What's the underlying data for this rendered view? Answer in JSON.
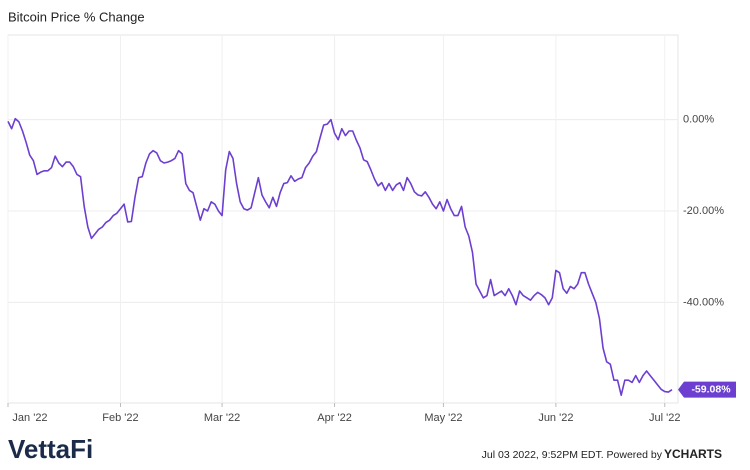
{
  "chart_data": {
    "type": "line",
    "title": "Bitcoin Price % Change",
    "series": [
      {
        "name": "Bitcoin Price % Change",
        "color": "#6c3fd1",
        "values": [
          -0.4,
          -2,
          0.2,
          -0.5,
          -2.5,
          -5,
          -7.8,
          -9,
          -12,
          -11.5,
          -11.2,
          -11.2,
          -10.5,
          -8,
          -9.5,
          -10.3,
          -9.3,
          -9.3,
          -10.3,
          -12,
          -12.5,
          -19,
          -23.5,
          -26,
          -25,
          -24,
          -23.5,
          -22.5,
          -22,
          -21,
          -20.5,
          -19.5,
          -18.5,
          -22.4,
          -22.3,
          -17,
          -12.7,
          -12.5,
          -9.5,
          -7.5,
          -6.8,
          -7.3,
          -9,
          -9.5,
          -9.3,
          -9,
          -8.5,
          -6.8,
          -7.5,
          -14,
          -15.5,
          -16,
          -19,
          -22,
          -19.5,
          -20,
          -18,
          -18.5,
          -20,
          -21,
          -11,
          -7,
          -8.5,
          -14,
          -18,
          -19.5,
          -19.8,
          -19.3,
          -16,
          -12.7,
          -16.5,
          -18,
          -19.3,
          -17,
          -19,
          -16,
          -14,
          -13.8,
          -12.3,
          -13.5,
          -13,
          -12.7,
          -10.5,
          -9.5,
          -8,
          -7,
          -4,
          -1.2,
          -1,
          0,
          -3,
          -4.4,
          -2,
          -3.5,
          -2.5,
          -2.5,
          -4.5,
          -6.2,
          -8.8,
          -9.2,
          -11,
          -13,
          -14.5,
          -13.8,
          -15.5,
          -14,
          -15.5,
          -14.3,
          -13.8,
          -15.5,
          -12.7,
          -14,
          -15.8,
          -16.5,
          -16.7,
          -15.8,
          -17,
          -18.5,
          -19.5,
          -18,
          -20,
          -17.5,
          -19.5,
          -21,
          -21,
          -19,
          -23.5,
          -25.5,
          -29,
          -36,
          -37.5,
          -39,
          -38.5,
          -35,
          -38.5,
          -38,
          -37.5,
          -38.5,
          -37,
          -38.5,
          -40.5,
          -37.5,
          -38.5,
          -39,
          -39.5,
          -38.5,
          -37.8,
          -38.3,
          -39,
          -40.5,
          -39,
          -33,
          -33.5,
          -37,
          -38,
          -36.5,
          -37,
          -36,
          -33.5,
          -33.5,
          -36,
          -38,
          -40,
          -43.5,
          -50,
          -53,
          -53.5,
          -57,
          -57,
          -60.3,
          -57,
          -57,
          -57.5,
          -56,
          -57.5,
          -56,
          -55,
          -56,
          -57,
          -58,
          -59,
          -59.5,
          -59.6,
          -59.08
        ],
        "value_labels": [
          null,
          null,
          null,
          null,
          null,
          null,
          null,
          null,
          null,
          null,
          null,
          null,
          null,
          null,
          null,
          null,
          null,
          null,
          null,
          null,
          null,
          null,
          null,
          null,
          null,
          null,
          null,
          null,
          null,
          null,
          null,
          null,
          null,
          null,
          null,
          null,
          null,
          null,
          null,
          null,
          null,
          null,
          null,
          null,
          null,
          null,
          null,
          null,
          null,
          null,
          null,
          null,
          null,
          null,
          null,
          null,
          null,
          null,
          null,
          null,
          null,
          null,
          null,
          null,
          null,
          null,
          null,
          null,
          null,
          null,
          null,
          null,
          null,
          null,
          null,
          null,
          null,
          null,
          null,
          null,
          null,
          null,
          null,
          null,
          null,
          null,
          null,
          null,
          null,
          null,
          null,
          null,
          null,
          null,
          null,
          null,
          null,
          null,
          null,
          null,
          null,
          null,
          null,
          null,
          null,
          null,
          null,
          null,
          null,
          null,
          null,
          null,
          null,
          null,
          null,
          null,
          null,
          null,
          null,
          null,
          null,
          null,
          null,
          null,
          null,
          null,
          null,
          null,
          null,
          null,
          null,
          null,
          null,
          null,
          null,
          null,
          null,
          null,
          null,
          null,
          null,
          null,
          null,
          null,
          null,
          null,
          null,
          null,
          null,
          null,
          null,
          null,
          null,
          null,
          null,
          null,
          null,
          null,
          null,
          null,
          null,
          null,
          null,
          null,
          null,
          null,
          null,
          null,
          null,
          null,
          null,
          null,
          null,
          null,
          null,
          null,
          null,
          null,
          null,
          null,
          null,
          null,
          null,
          "-59.08%"
        ]
      }
    ],
    "xlim": [
      0,
      183
    ],
    "xticks": [
      {
        "value": 0,
        "label": "Jan '22"
      },
      {
        "value": 31,
        "label": "Feb '22"
      },
      {
        "value": 59,
        "label": "Mar '22"
      },
      {
        "value": 90,
        "label": "Apr '22"
      },
      {
        "value": 120,
        "label": "May '22"
      },
      {
        "value": 151,
        "label": "Jun '22"
      },
      {
        "value": 181,
        "label": "Jul '22"
      }
    ],
    "ylim": [
      -62,
      18.5
    ],
    "yticks": [
      {
        "value": 0,
        "label": "0.00%"
      },
      {
        "value": -20,
        "label": "-20.00%"
      },
      {
        "value": -40,
        "label": "-40.00%"
      }
    ],
    "grid": true
  },
  "footer": {
    "brand": "VettaFi",
    "note": "Jul 03 2022, 9:52PM EDT. Powered by",
    "source": "YCHARTS"
  }
}
